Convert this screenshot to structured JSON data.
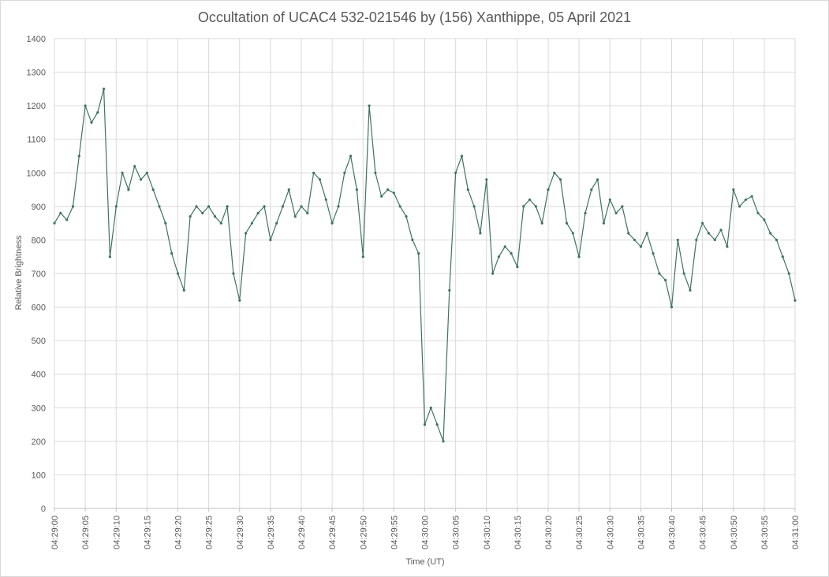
{
  "chart_data": {
    "type": "line",
    "title": "Occultation of UCAC4 532-021546 by (156) Xanthippe, 05 April 2021",
    "xlabel": "Time (UT)",
    "ylabel": "Relative Brightness",
    "ylim": [
      0,
      1400
    ],
    "yticks": [
      0,
      100,
      200,
      300,
      400,
      500,
      600,
      700,
      800,
      900,
      1000,
      1100,
      1200,
      1300,
      1400
    ],
    "xlim_seconds_labels": [
      "04:29:00",
      "04:31:00"
    ],
    "xticks": [
      "04:29:00",
      "04:29:05",
      "04:29:10",
      "04:29:15",
      "04:29:20",
      "04:29:25",
      "04:29:30",
      "04:29:35",
      "04:29:40",
      "04:29:45",
      "04:29:50",
      "04:29:55",
      "04:30:00",
      "04:30:05",
      "04:30:10",
      "04:30:15",
      "04:30:20",
      "04:30:25",
      "04:30:30",
      "04:30:35",
      "04:30:40",
      "04:30:45",
      "04:30:50",
      "04:30:55",
      "04:31:00"
    ],
    "grid": true,
    "legend": "none",
    "series": [
      {
        "color": "#3f7363",
        "x": [
          "04:29:00",
          "04:29:01",
          "04:29:02",
          "04:29:03",
          "04:29:04",
          "04:29:05",
          "04:29:06",
          "04:29:07",
          "04:29:08",
          "04:29:09",
          "04:29:10",
          "04:29:11",
          "04:29:12",
          "04:29:13",
          "04:29:14",
          "04:29:15",
          "04:29:16",
          "04:29:17",
          "04:29:18",
          "04:29:19",
          "04:29:20",
          "04:29:21",
          "04:29:22",
          "04:29:23",
          "04:29:24",
          "04:29:25",
          "04:29:26",
          "04:29:27",
          "04:29:28",
          "04:29:29",
          "04:29:30",
          "04:29:31",
          "04:29:32",
          "04:29:33",
          "04:29:34",
          "04:29:35",
          "04:29:36",
          "04:29:37",
          "04:29:38",
          "04:29:39",
          "04:29:40",
          "04:29:41",
          "04:29:42",
          "04:29:43",
          "04:29:44",
          "04:29:45",
          "04:29:46",
          "04:29:47",
          "04:29:48",
          "04:29:49",
          "04:29:50",
          "04:29:51",
          "04:29:52",
          "04:29:53",
          "04:29:54",
          "04:29:55",
          "04:29:56",
          "04:29:57",
          "04:29:58",
          "04:29:59",
          "04:30:00",
          "04:30:01",
          "04:30:02",
          "04:30:03",
          "04:30:04",
          "04:30:05",
          "04:30:06",
          "04:30:07",
          "04:30:08",
          "04:30:09",
          "04:30:10",
          "04:30:11",
          "04:30:12",
          "04:30:13",
          "04:30:14",
          "04:30:15",
          "04:30:16",
          "04:30:17",
          "04:30:18",
          "04:30:19",
          "04:30:20",
          "04:30:21",
          "04:30:22",
          "04:30:23",
          "04:30:24",
          "04:30:25",
          "04:30:26",
          "04:30:27",
          "04:30:28",
          "04:30:29",
          "04:30:30",
          "04:30:31",
          "04:30:32",
          "04:30:33",
          "04:30:34",
          "04:30:35",
          "04:30:36",
          "04:30:37",
          "04:30:38",
          "04:30:39",
          "04:30:40",
          "04:30:41",
          "04:30:42",
          "04:30:43",
          "04:30:44",
          "04:30:45",
          "04:30:46",
          "04:30:47",
          "04:30:48",
          "04:30:49",
          "04:30:50",
          "04:30:51",
          "04:30:52",
          "04:30:53",
          "04:30:54",
          "04:30:55",
          "04:30:56",
          "04:30:57",
          "04:30:58",
          "04:30:59",
          "04:31:00"
        ],
        "values": [
          850,
          880,
          860,
          900,
          1050,
          1200,
          1150,
          1180,
          1250,
          750,
          900,
          1000,
          950,
          1020,
          980,
          1000,
          950,
          900,
          850,
          760,
          700,
          650,
          870,
          900,
          880,
          900,
          870,
          850,
          900,
          700,
          620,
          820,
          850,
          880,
          900,
          800,
          850,
          900,
          950,
          870,
          900,
          880,
          1000,
          980,
          920,
          850,
          900,
          1000,
          1050,
          950,
          750,
          1200,
          1000,
          930,
          950,
          940,
          900,
          870,
          800,
          760,
          250,
          300,
          250,
          200,
          650,
          1000,
          1050,
          950,
          900,
          820,
          980,
          700,
          750,
          780,
          760,
          720,
          900,
          920,
          900,
          850,
          950,
          1000,
          980,
          850,
          820,
          750,
          880,
          950,
          980,
          850,
          920,
          880,
          900,
          820,
          800,
          780,
          820,
          760,
          700,
          680,
          600,
          800,
          700,
          650,
          800,
          850,
          820,
          800,
          830,
          780,
          950,
          900,
          920,
          930,
          880,
          860,
          820,
          800,
          750,
          700,
          620
        ]
      }
    ]
  }
}
